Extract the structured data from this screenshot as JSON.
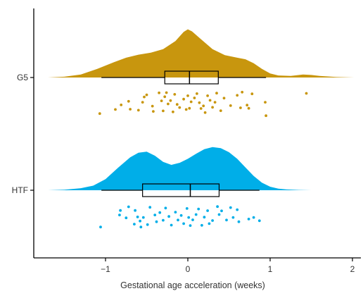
{
  "chart_data": {
    "type": "raincloud",
    "title": "",
    "xlabel": "Gestational age acceleration (weeks)",
    "ylabel": "",
    "xlim": [
      -1.85,
      2.05
    ],
    "x_ticks": [
      -1,
      0,
      1,
      2
    ],
    "x_tick_labels": [
      "−1",
      "0",
      "1",
      "2"
    ],
    "grid": false,
    "legend": "none",
    "series": [
      {
        "name": "G5",
        "color": "#C8960E",
        "density": {
          "x": [
            -1.7,
            -1.5,
            -1.3,
            -1.1,
            -0.9,
            -0.75,
            -0.6,
            -0.45,
            -0.3,
            -0.15,
            -0.05,
            0.0,
            0.05,
            0.15,
            0.3,
            0.45,
            0.6,
            0.7,
            0.8,
            0.9,
            1.0,
            1.1,
            1.25,
            1.4,
            1.5,
            1.6,
            1.8,
            2.02
          ],
          "y": [
            0.0,
            0.015,
            0.06,
            0.17,
            0.3,
            0.39,
            0.45,
            0.49,
            0.56,
            0.72,
            0.9,
            0.95,
            0.91,
            0.77,
            0.56,
            0.44,
            0.39,
            0.36,
            0.28,
            0.17,
            0.08,
            0.04,
            0.03,
            0.06,
            0.05,
            0.03,
            0.01,
            0.0
          ]
        },
        "box": {
          "whisker_low": -1.05,
          "q1": -0.28,
          "median": 0.02,
          "q3": 0.37,
          "whisker_high": 0.95
        },
        "points": [
          [
            -1.07,
            1.09
          ],
          [
            -0.88,
            0.92
          ],
          [
            -0.81,
            0.73
          ],
          [
            -0.72,
            0.58
          ],
          [
            -0.7,
            0.91
          ],
          [
            -0.6,
            0.95
          ],
          [
            -0.55,
            0.62
          ],
          [
            -0.53,
            0.4
          ],
          [
            -0.5,
            0.31
          ],
          [
            -0.43,
            0.78
          ],
          [
            -0.42,
            1.0
          ],
          [
            -0.35,
            0.23
          ],
          [
            -0.32,
            0.56
          ],
          [
            -0.3,
            0.98
          ],
          [
            -0.28,
            0.39
          ],
          [
            -0.26,
            0.22
          ],
          [
            -0.24,
            0.69
          ],
          [
            -0.21,
            0.55
          ],
          [
            -0.18,
            1.02
          ],
          [
            -0.16,
            0.29
          ],
          [
            -0.13,
            0.71
          ],
          [
            -0.1,
            0.84
          ],
          [
            -0.05,
            0.49
          ],
          [
            -0.02,
            0.92
          ],
          [
            0.0,
            0.35
          ],
          [
            0.02,
            0.87
          ],
          [
            0.04,
            0.6
          ],
          [
            0.08,
            0.44
          ],
          [
            0.11,
            0.26
          ],
          [
            0.14,
            0.64
          ],
          [
            0.16,
            0.88
          ],
          [
            0.19,
            0.77
          ],
          [
            0.21,
            1.05
          ],
          [
            0.24,
            0.35
          ],
          [
            0.27,
            0.54
          ],
          [
            0.3,
            0.83
          ],
          [
            0.33,
            0.62
          ],
          [
            0.35,
            0.24
          ],
          [
            0.4,
            0.97
          ],
          [
            0.44,
            0.45
          ],
          [
            0.52,
            0.76
          ],
          [
            0.6,
            0.33
          ],
          [
            0.64,
            0.85
          ],
          [
            0.66,
            0.2
          ],
          [
            0.72,
            0.74
          ],
          [
            0.74,
            0.87
          ],
          [
            0.78,
            0.27
          ],
          [
            0.94,
            0.62
          ],
          [
            0.95,
            1.18
          ],
          [
            1.44,
            0.25
          ]
        ]
      },
      {
        "name": "HTF",
        "color": "#00AEE8",
        "density": {
          "x": [
            -1.7,
            -1.5,
            -1.3,
            -1.15,
            -1.0,
            -0.85,
            -0.7,
            -0.6,
            -0.5,
            -0.4,
            -0.3,
            -0.2,
            -0.1,
            0.0,
            0.1,
            0.2,
            0.3,
            0.4,
            0.5,
            0.6,
            0.7,
            0.8,
            0.9,
            1.0,
            1.1,
            1.2,
            1.35,
            1.5
          ],
          "y": [
            0.0,
            0.01,
            0.04,
            0.09,
            0.22,
            0.44,
            0.65,
            0.74,
            0.76,
            0.68,
            0.56,
            0.5,
            0.54,
            0.62,
            0.72,
            0.81,
            0.85,
            0.83,
            0.75,
            0.62,
            0.45,
            0.28,
            0.15,
            0.07,
            0.03,
            0.015,
            0.005,
            0.0
          ]
        },
        "box": {
          "whisker_low": -1.05,
          "q1": -0.55,
          "median": 0.03,
          "q3": 0.38,
          "whisker_high": 0.87
        },
        "points": [
          [
            -1.06,
            1.12
          ],
          [
            -0.83,
            0.62
          ],
          [
            -0.82,
            0.43
          ],
          [
            -0.75,
            0.74
          ],
          [
            -0.72,
            0.28
          ],
          [
            -0.65,
            1.0
          ],
          [
            -0.64,
            0.43
          ],
          [
            -0.61,
            0.7
          ],
          [
            -0.58,
            0.87
          ],
          [
            -0.57,
            1.12
          ],
          [
            -0.54,
            0.72
          ],
          [
            -0.49,
            1.02
          ],
          [
            -0.46,
            0.3
          ],
          [
            -0.4,
            0.62
          ],
          [
            -0.38,
            0.9
          ],
          [
            -0.34,
            0.52
          ],
          [
            -0.3,
            0.84
          ],
          [
            -0.27,
            0.33
          ],
          [
            -0.23,
            0.68
          ],
          [
            -0.2,
            1.04
          ],
          [
            -0.15,
            0.5
          ],
          [
            -0.12,
            0.83
          ],
          [
            -0.08,
            0.64
          ],
          [
            -0.05,
            0.98
          ],
          [
            -0.01,
            0.35
          ],
          [
            0.01,
            0.72
          ],
          [
            0.03,
            1.06
          ],
          [
            0.06,
            0.82
          ],
          [
            0.1,
            0.6
          ],
          [
            0.13,
            0.37
          ],
          [
            0.17,
            1.05
          ],
          [
            0.2,
            0.71
          ],
          [
            0.24,
            0.44
          ],
          [
            0.26,
            0.98
          ],
          [
            0.3,
            0.85
          ],
          [
            0.36,
            0.27
          ],
          [
            0.38,
            0.6
          ],
          [
            0.41,
            0.45
          ],
          [
            0.47,
            0.83
          ],
          [
            0.52,
            0.31
          ],
          [
            0.55,
            0.72
          ],
          [
            0.6,
            0.4
          ],
          [
            0.62,
            0.9
          ],
          [
            0.74,
            0.79
          ],
          [
            0.8,
            0.72
          ],
          [
            0.87,
            0.86
          ]
        ]
      }
    ]
  }
}
